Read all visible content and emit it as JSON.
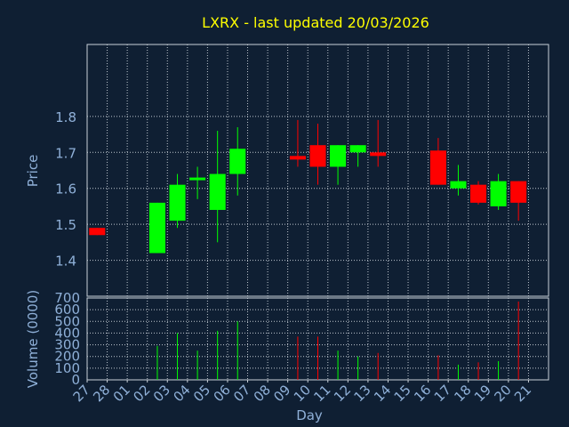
{
  "chart_data": {
    "type": "candlestick",
    "title": "LXRX - last updated 20/03/2026",
    "xlabel": "Day",
    "ylabel": "Price",
    "volume_label": "Volume (0000)",
    "ylim": [
      1.3,
      2.0
    ],
    "price_ticks": [
      "1.4",
      "1.5",
      "1.6",
      "1.7",
      "1.8"
    ],
    "volume_ylim": [
      0,
      700
    ],
    "volume_ticks": [
      "0",
      "100",
      "200",
      "300",
      "400",
      "500",
      "600",
      "700"
    ],
    "grid": true,
    "colors": {
      "background": "#0f1f33",
      "up": "#00ff00",
      "down": "#ff0000",
      "title": "#ffff00",
      "axis_text": "#8fb0d8",
      "grid": "#c0c8d0"
    },
    "days": [
      "27",
      "28",
      "01",
      "02",
      "03",
      "04",
      "05",
      "06",
      "07",
      "08",
      "09",
      "10",
      "11",
      "12",
      "13",
      "14",
      "15",
      "16",
      "17",
      "18",
      "19",
      "20",
      "21"
    ],
    "candles": [
      {
        "day": "27",
        "open": 1.49,
        "high": 1.49,
        "low": 1.47,
        "close": 1.47,
        "volume": 0
      },
      {
        "day": "02",
        "open": 1.42,
        "high": 1.56,
        "low": 1.42,
        "close": 1.56,
        "volume": 290
      },
      {
        "day": "03",
        "open": 1.51,
        "high": 1.64,
        "low": 1.49,
        "close": 1.61,
        "volume": 400
      },
      {
        "day": "04",
        "open": 1.625,
        "high": 1.66,
        "low": 1.57,
        "close": 1.63,
        "volume": 250
      },
      {
        "day": "05",
        "open": 1.54,
        "high": 1.76,
        "low": 1.45,
        "close": 1.64,
        "volume": 420
      },
      {
        "day": "06",
        "open": 1.64,
        "high": 1.77,
        "low": 1.58,
        "close": 1.71,
        "volume": 500
      },
      {
        "day": "09",
        "open": 1.69,
        "high": 1.79,
        "low": 1.66,
        "close": 1.68,
        "volume": 370
      },
      {
        "day": "10",
        "open": 1.72,
        "high": 1.78,
        "low": 1.61,
        "close": 1.66,
        "volume": 370
      },
      {
        "day": "11",
        "open": 1.66,
        "high": 1.72,
        "low": 1.61,
        "close": 1.72,
        "volume": 250
      },
      {
        "day": "12",
        "open": 1.7,
        "high": 1.72,
        "low": 1.66,
        "close": 1.72,
        "volume": 200
      },
      {
        "day": "13",
        "open": 1.7,
        "high": 1.79,
        "low": 1.66,
        "close": 1.69,
        "volume": 230
      },
      {
        "day": "16",
        "open": 1.705,
        "high": 1.74,
        "low": 1.61,
        "close": 1.61,
        "volume": 210
      },
      {
        "day": "17",
        "open": 1.6,
        "high": 1.665,
        "low": 1.58,
        "close": 1.62,
        "volume": 130
      },
      {
        "day": "18",
        "open": 1.61,
        "high": 1.62,
        "low": 1.555,
        "close": 1.56,
        "volume": 150
      },
      {
        "day": "19",
        "open": 1.55,
        "high": 1.64,
        "low": 1.54,
        "close": 1.62,
        "volume": 160
      },
      {
        "day": "20",
        "open": 1.62,
        "high": 1.62,
        "low": 1.51,
        "close": 1.56,
        "volume": 670
      }
    ]
  }
}
